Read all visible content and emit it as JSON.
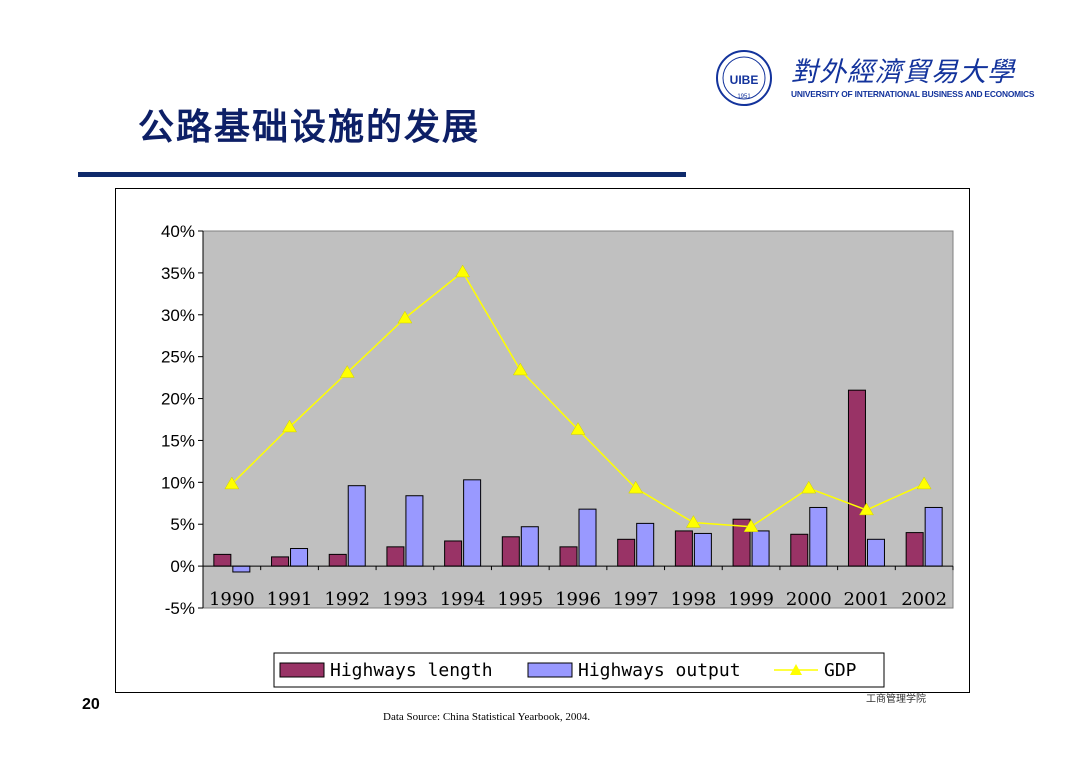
{
  "slide": {
    "title": "公路基础设施的发展",
    "page_number": "20",
    "source_note": "Data Source: China Statistical Yearbook, 2004.",
    "author_mark": "工商管理学院"
  },
  "logo": {
    "emblem_text": "UIBE",
    "emblem_year": "1951",
    "chinese_name": "對外經濟貿易大學",
    "english_name": "UNIVERSITY OF INTERNATIONAL BUSINESS AND ECONOMICS"
  },
  "colors": {
    "title": "#0d1f66",
    "rule": "#0f2a6b",
    "plot_bg": "#c0c0c0",
    "length_fill": "#993366",
    "output_fill": "#9999ff",
    "gdp_line": "#ffff00"
  },
  "chart_data": {
    "type": "bar",
    "categories": [
      "1990",
      "1991",
      "1992",
      "1993",
      "1994",
      "1995",
      "1996",
      "1997",
      "1998",
      "1999",
      "2000",
      "2001",
      "2002"
    ],
    "series": [
      {
        "name": "Highways length",
        "type": "bar",
        "values": [
          1.4,
          1.1,
          1.4,
          2.3,
          3.0,
          3.5,
          2.3,
          3.2,
          4.2,
          5.6,
          3.8,
          21.0,
          4.0
        ]
      },
      {
        "name": "Highways output",
        "type": "bar",
        "values": [
          -0.7,
          2.1,
          9.6,
          8.4,
          10.3,
          4.7,
          6.8,
          5.1,
          3.9,
          4.2,
          7.0,
          3.2,
          7.0
        ]
      },
      {
        "name": "GDP",
        "type": "line",
        "values": [
          9.8,
          16.6,
          23.1,
          29.6,
          35.1,
          23.4,
          16.3,
          9.3,
          5.2,
          4.7,
          9.3,
          6.7,
          9.8
        ]
      }
    ],
    "yunit": "%",
    "yticks": [
      "40%",
      "35%",
      "30%",
      "25%",
      "20%",
      "15%",
      "10%",
      "5%",
      "0%",
      "-5%"
    ],
    "ylim": [
      -5,
      40
    ],
    "grid": false,
    "legend_position": "bottom"
  }
}
